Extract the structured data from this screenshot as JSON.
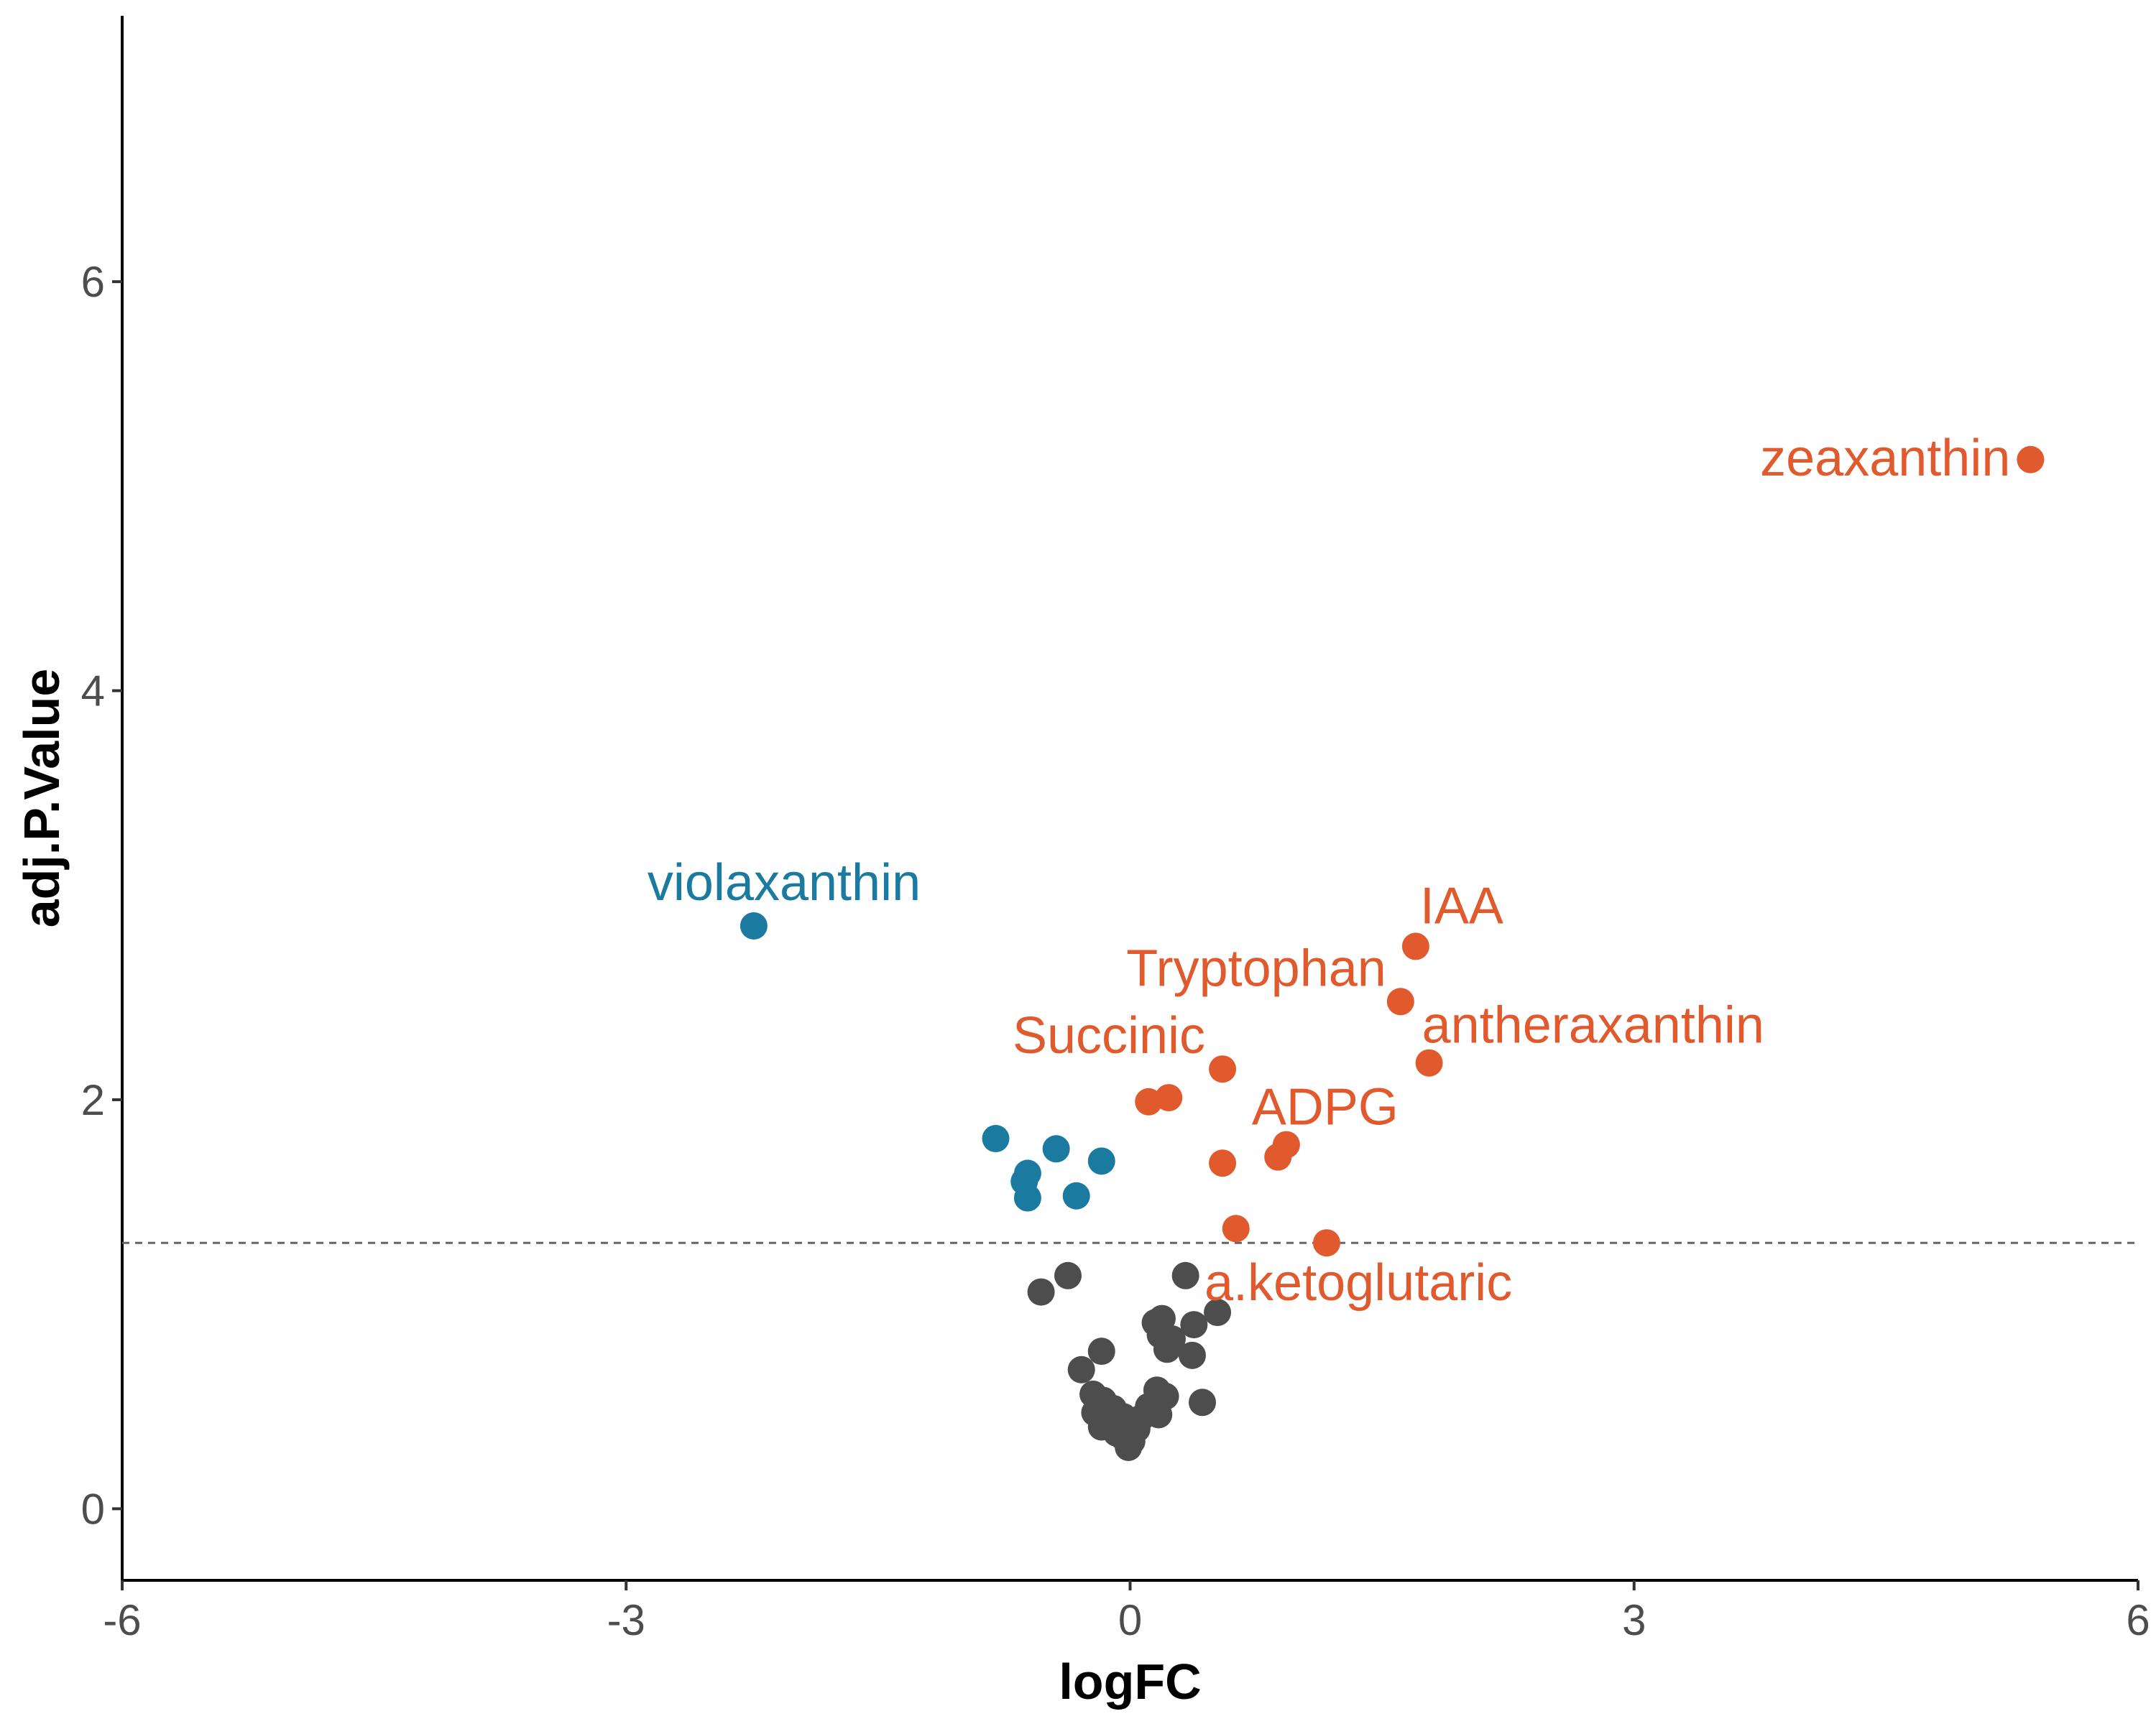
{
  "chart_data": {
    "type": "scatter",
    "title": "",
    "xlabel": "logFC",
    "ylabel": "adj.P.Value",
    "xlim": [
      -6,
      6
    ],
    "ylim": [
      -0.35,
      7.3
    ],
    "x_ticks": [
      -6,
      -3,
      0,
      3,
      6
    ],
    "x_tick_labels": [
      "-6",
      "-3",
      "0",
      "3",
      "6"
    ],
    "y_ticks": [
      0,
      2,
      4,
      6
    ],
    "y_tick_labels": [
      "0",
      "2",
      "4",
      "6"
    ],
    "threshold": 1.3,
    "grid": false,
    "legend": "none",
    "colors": {
      "up": "#E05A2E",
      "down": "#1A7AA0",
      "ns": "#4D4D4D"
    },
    "points": [
      {
        "x": 5.36,
        "y": 5.13,
        "group": "up",
        "label": "zeaxanthin"
      },
      {
        "x": -2.24,
        "y": 2.85,
        "group": "down",
        "label": "violaxanthin"
      },
      {
        "x": 1.7,
        "y": 2.75,
        "group": "up",
        "label": "IAA"
      },
      {
        "x": 1.61,
        "y": 2.48,
        "group": "up",
        "label": "Tryptophan"
      },
      {
        "x": 1.78,
        "y": 2.18,
        "group": "up",
        "label": "antheraxanthin"
      },
      {
        "x": 0.55,
        "y": 2.15,
        "group": "up",
        "label": "Succinic"
      },
      {
        "x": 0.93,
        "y": 1.78,
        "group": "up",
        "label": "ADPG"
      },
      {
        "x": 1.17,
        "y": 1.3,
        "group": "up",
        "label": "a.ketoglutaric"
      },
      {
        "x": 0.11,
        "y": 1.99,
        "group": "up",
        "label": ""
      },
      {
        "x": 0.23,
        "y": 2.01,
        "group": "up",
        "label": ""
      },
      {
        "x": 0.88,
        "y": 1.72,
        "group": "up",
        "label": ""
      },
      {
        "x": 0.55,
        "y": 1.69,
        "group": "up",
        "label": ""
      },
      {
        "x": 0.63,
        "y": 1.37,
        "group": "up",
        "label": ""
      },
      {
        "x": -0.8,
        "y": 1.81,
        "group": "down",
        "label": ""
      },
      {
        "x": -0.44,
        "y": 1.76,
        "group": "down",
        "label": ""
      },
      {
        "x": -0.17,
        "y": 1.7,
        "group": "down",
        "label": ""
      },
      {
        "x": -0.61,
        "y": 1.64,
        "group": "down",
        "label": ""
      },
      {
        "x": -0.63,
        "y": 1.6,
        "group": "down",
        "label": ""
      },
      {
        "x": -0.61,
        "y": 1.52,
        "group": "down",
        "label": ""
      },
      {
        "x": -0.32,
        "y": 1.53,
        "group": "down",
        "label": ""
      },
      {
        "x": 0.33,
        "y": 1.14,
        "group": "ns",
        "label": ""
      },
      {
        "x": -0.37,
        "y": 1.14,
        "group": "ns",
        "label": ""
      },
      {
        "x": -0.53,
        "y": 1.06,
        "group": "ns",
        "label": ""
      },
      {
        "x": 0.52,
        "y": 0.96,
        "group": "ns",
        "label": ""
      },
      {
        "x": 0.19,
        "y": 0.93,
        "group": "ns",
        "label": ""
      },
      {
        "x": 0.15,
        "y": 0.91,
        "group": "ns",
        "label": ""
      },
      {
        "x": 0.38,
        "y": 0.9,
        "group": "ns",
        "label": ""
      },
      {
        "x": 0.18,
        "y": 0.85,
        "group": "ns",
        "label": ""
      },
      {
        "x": 0.25,
        "y": 0.83,
        "group": "ns",
        "label": ""
      },
      {
        "x": 0.22,
        "y": 0.78,
        "group": "ns",
        "label": ""
      },
      {
        "x": -0.17,
        "y": 0.77,
        "group": "ns",
        "label": ""
      },
      {
        "x": 0.37,
        "y": 0.75,
        "group": "ns",
        "label": ""
      },
      {
        "x": -0.29,
        "y": 0.68,
        "group": "ns",
        "label": ""
      },
      {
        "x": 0.16,
        "y": 0.58,
        "group": "ns",
        "label": ""
      },
      {
        "x": -0.22,
        "y": 0.56,
        "group": "ns",
        "label": ""
      },
      {
        "x": 0.21,
        "y": 0.55,
        "group": "ns",
        "label": ""
      },
      {
        "x": -0.16,
        "y": 0.53,
        "group": "ns",
        "label": ""
      },
      {
        "x": 0.43,
        "y": 0.52,
        "group": "ns",
        "label": ""
      },
      {
        "x": 0.11,
        "y": 0.5,
        "group": "ns",
        "label": ""
      },
      {
        "x": -0.1,
        "y": 0.49,
        "group": "ns",
        "label": ""
      },
      {
        "x": -0.21,
        "y": 0.47,
        "group": "ns",
        "label": ""
      },
      {
        "x": 0.17,
        "y": 0.46,
        "group": "ns",
        "label": ""
      },
      {
        "x": -0.04,
        "y": 0.45,
        "group": "ns",
        "label": ""
      },
      {
        "x": 0.06,
        "y": 0.44,
        "group": "ns",
        "label": ""
      },
      {
        "x": -0.14,
        "y": 0.42,
        "group": "ns",
        "label": ""
      },
      {
        "x": -0.17,
        "y": 0.4,
        "group": "ns",
        "label": ""
      },
      {
        "x": 0.04,
        "y": 0.39,
        "group": "ns",
        "label": ""
      },
      {
        "x": -0.08,
        "y": 0.37,
        "group": "ns",
        "label": ""
      },
      {
        "x": -0.04,
        "y": 0.35,
        "group": "ns",
        "label": ""
      },
      {
        "x": 0.01,
        "y": 0.33,
        "group": "ns",
        "label": ""
      },
      {
        "x": -0.01,
        "y": 0.3,
        "group": "ns",
        "label": ""
      }
    ]
  }
}
